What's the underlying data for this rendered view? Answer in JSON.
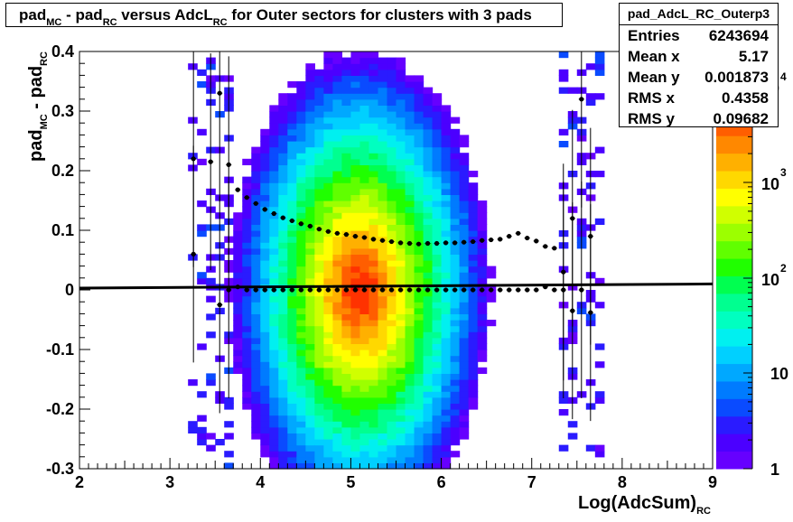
{
  "title": {
    "pad": "pad",
    "mc": "MC",
    "minus": " - pad",
    "rc": "RC",
    "versus": " versus AdcL",
    "rc2": "RC",
    "rest": " for Outer sectors for clusters with 3 pads"
  },
  "stats": {
    "name": "pad_AdcL_RC_Outerp3",
    "rows": [
      {
        "key": "Entries",
        "value": "6243694"
      },
      {
        "key": "Mean x",
        "value": "5.17"
      },
      {
        "key": "Mean y",
        "value": "0.001873"
      },
      {
        "key": "RMS x",
        "value": "0.4358"
      },
      {
        "key": "RMS y",
        "value": "0.09682"
      }
    ]
  },
  "axis_titles": {
    "y_main": "pad",
    "y_mc": "MC",
    "y_mid": " - pad",
    "y_rc": "RC",
    "x_main": "Log(AdcSum)",
    "x_rc": "RC"
  },
  "chart_data": {
    "type": "heatmap",
    "xlim": [
      2,
      9
    ],
    "ylim": [
      -0.3,
      0.4
    ],
    "x_ticks": [
      "2",
      "3",
      "4",
      "5",
      "6",
      "7",
      "8",
      "9"
    ],
    "y_ticks": [
      "-0.3",
      "-0.2",
      "-0.1",
      "0",
      "0.1",
      "0.2",
      "0.3",
      "0.4"
    ],
    "z_scale": "log",
    "z_ticks": [
      "1",
      "10",
      "10^2",
      "10^3",
      "10^4"
    ],
    "density_center": [
      5.1,
      0.0
    ],
    "peak_count": 20000,
    "occupied_x_range": [
      3.2,
      7.8
    ],
    "mean_profile": {
      "x": [
        3.26,
        3.55,
        3.65,
        3.75,
        3.85,
        3.95,
        4.05,
        4.15,
        4.25,
        4.35,
        4.45,
        4.55,
        4.65,
        4.75,
        4.85,
        4.95,
        5.05,
        5.15,
        5.25,
        5.35,
        5.45,
        5.55,
        5.65,
        5.75,
        5.85,
        5.95,
        6.05,
        6.15,
        6.25,
        6.35,
        6.45,
        6.55,
        6.65,
        6.75,
        6.85,
        6.95,
        7.05,
        7.15,
        7.25,
        7.35,
        7.45,
        7.55,
        7.65
      ],
      "y": [
        0.06,
        -0.025,
        0.0,
        0.005,
        0.0,
        0.0,
        0.0,
        0.0,
        0.0,
        0.0,
        0.0,
        0.0,
        0.0,
        0.0,
        0.0,
        0.0,
        0.0,
        0.0,
        0.0,
        0.0,
        0.0,
        0.0,
        0.0,
        0.0,
        0.0,
        0.0,
        0.0,
        0.0,
        0.0,
        0.0,
        0.0,
        0.0,
        0.0,
        0.0,
        0.0,
        0.0,
        0.0,
        0.005,
        0.0,
        0.0,
        -0.035,
        0.0,
        -0.038
      ]
    },
    "rms_profile": {
      "x": [
        3.26,
        3.45,
        3.55,
        3.65,
        3.75,
        3.85,
        3.95,
        4.05,
        4.15,
        4.25,
        4.35,
        4.45,
        4.55,
        4.65,
        4.75,
        4.85,
        4.95,
        5.05,
        5.15,
        5.25,
        5.35,
        5.45,
        5.55,
        5.65,
        5.75,
        5.85,
        5.95,
        6.05,
        6.15,
        6.25,
        6.35,
        6.45,
        6.55,
        6.65,
        6.75,
        6.85,
        6.95,
        7.05,
        7.15,
        7.25,
        7.35,
        7.45,
        7.55,
        7.65
      ],
      "y": [
        0.22,
        0.215,
        0.33,
        0.21,
        0.168,
        0.155,
        0.145,
        0.135,
        0.128,
        0.121,
        0.116,
        0.111,
        0.107,
        0.102,
        0.098,
        0.095,
        0.093,
        0.09,
        0.088,
        0.085,
        0.083,
        0.081,
        0.079,
        0.078,
        0.077,
        0.078,
        0.078,
        0.079,
        0.079,
        0.08,
        0.081,
        0.083,
        0.084,
        0.085,
        0.09,
        0.095,
        0.087,
        0.082,
        0.073,
        0.07,
        0.03,
        0.12,
        0.32,
        0.09
      ]
    },
    "fit_line": {
      "x": [
        2,
        9
      ],
      "y": [
        0.003,
        0.01
      ]
    }
  }
}
